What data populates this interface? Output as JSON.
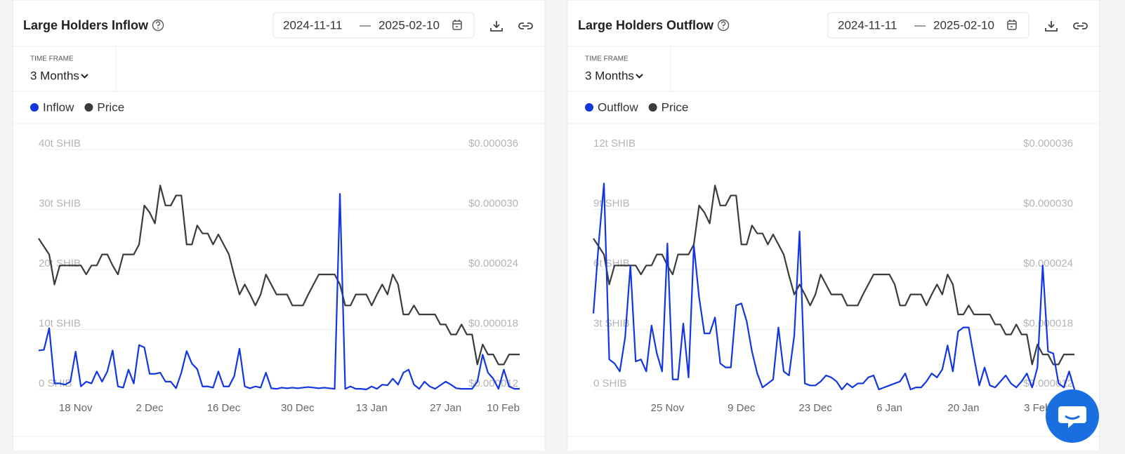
{
  "panels": [
    {
      "date_start": "2024-11-11",
      "date_separator": "—",
      "date_end": "2025-02-10",
      "time_frame_label": "TIME FRAME",
      "time_frame": "3 Months"
    },
    {
      "date_start": "2024-11-11",
      "date_separator": "—",
      "date_end": "2025-02-10",
      "time_frame_label": "TIME FRAME",
      "time_frame": "3 Months"
    }
  ],
  "chart_data": [
    {
      "type": "line",
      "title": "Large Holders Inflow",
      "categories": [
        null,
        null,
        null,
        null,
        null,
        null,
        null,
        "18 Nov",
        null,
        null,
        null,
        null,
        null,
        null,
        null,
        null,
        null,
        null,
        null,
        null,
        null,
        "2 Dec",
        null,
        null,
        null,
        null,
        null,
        null,
        null,
        null,
        null,
        null,
        null,
        null,
        null,
        "16 Dec",
        null,
        null,
        null,
        null,
        null,
        null,
        null,
        null,
        null,
        null,
        null,
        null,
        null,
        "30 Dec",
        null,
        null,
        null,
        null,
        null,
        null,
        null,
        null,
        null,
        null,
        null,
        null,
        null,
        "13 Jan",
        null,
        null,
        null,
        null,
        null,
        null,
        null,
        null,
        null,
        null,
        null,
        null,
        null,
        "27 Jan",
        null,
        null,
        null,
        null,
        null,
        null,
        null,
        null,
        null,
        null,
        null,
        null,
        null,
        "10 Feb"
      ],
      "series": [
        {
          "name": "Inflow",
          "color": "#1236e0",
          "values": [
            6.5,
            6.6,
            10.2,
            1.0,
            1.0,
            0.8,
            1.3,
            6.3,
            0.5,
            1.3,
            1.0,
            3.0,
            1.3,
            3.0,
            6.5,
            0.5,
            0.3,
            3.3,
            1.0,
            7.4,
            7.0,
            2.6,
            2.6,
            2.8,
            1.3,
            1.3,
            0.2,
            2.8,
            6.4,
            4.3,
            3.4,
            0.5,
            0.5,
            0.3,
            3.0,
            0.5,
            0.5,
            2.2,
            6.8,
            0.5,
            0.2,
            0.5,
            0.3,
            2.8,
            0.2,
            0.1,
            0.3,
            0.2,
            0.3,
            0.2,
            0.3,
            0.4,
            0.3,
            0.2,
            0.3,
            0.2,
            0.1,
            32.6,
            0.1,
            0.5,
            0.1,
            0.1,
            0.0,
            0.5,
            0.1,
            0.8,
            0.7,
            1.8,
            0.8,
            2.8,
            3.3,
            0.8,
            0.1,
            1.3,
            0.5,
            0.1,
            0.7,
            1.3,
            0.8,
            0.2,
            0.1,
            0.1,
            0.1,
            1.3,
            5.8,
            2.8,
            1.8,
            0.1,
            3.3,
            0.5,
            0.1,
            0.1
          ]
        },
        {
          "name": "Price",
          "color": "#3b3b3b",
          "axis": "y2",
          "values": [
            2.71e-05,
            2.63e-05,
            2.55e-05,
            2.25e-05,
            2.44e-05,
            2.44e-05,
            2.44e-05,
            2.44e-05,
            2.44e-05,
            2.35e-05,
            2.44e-05,
            2.44e-05,
            2.55e-05,
            2.55e-05,
            2.44e-05,
            2.35e-05,
            2.55e-05,
            2.55e-05,
            2.55e-05,
            2.65e-05,
            3.04e-05,
            2.97e-05,
            2.86e-05,
            3.24e-05,
            3.04e-05,
            3.04e-05,
            3.14e-05,
            3.14e-05,
            2.65e-05,
            2.65e-05,
            2.84e-05,
            2.76e-05,
            2.76e-05,
            2.65e-05,
            2.75e-05,
            2.65e-05,
            2.55e-05,
            2.34e-05,
            2.15e-05,
            2.25e-05,
            2.15e-05,
            2.04e-05,
            2.15e-05,
            2.35e-05,
            2.25e-05,
            2.15e-05,
            2.15e-05,
            2.15e-05,
            2.04e-05,
            2.04e-05,
            2.04e-05,
            2.15e-05,
            2.25e-05,
            2.35e-05,
            2.35e-05,
            2.35e-05,
            2.35e-05,
            2.25e-05,
            2.04e-05,
            2.04e-05,
            2.15e-05,
            2.15e-05,
            2.15e-05,
            2.04e-05,
            2.15e-05,
            2.25e-05,
            2.15e-05,
            2.35e-05,
            2.25e-05,
            1.95e-05,
            1.95e-05,
            2.04e-05,
            1.95e-05,
            1.95e-05,
            1.95e-05,
            1.95e-05,
            1.85e-05,
            1.85e-05,
            1.75e-05,
            1.75e-05,
            1.85e-05,
            1.75e-05,
            1.75e-05,
            1.45e-05,
            1.65e-05,
            1.55e-05,
            1.55e-05,
            1.45e-05,
            1.45e-05,
            1.55e-05,
            1.55e-05,
            1.55e-05
          ]
        }
      ],
      "ylim": [
        0,
        40
      ],
      "yticks": [
        {
          "value": 0,
          "label": "0 SHIB"
        },
        {
          "value": 10,
          "label": "10t SHIB"
        },
        {
          "value": 20,
          "label": "20t SHIB"
        },
        {
          "value": 30,
          "label": "30t SHIB"
        },
        {
          "value": 40,
          "label": "40t SHIB"
        }
      ],
      "y2lim": [
        1.2e-05,
        3.6e-05
      ],
      "y2ticks": [
        {
          "value": 1.2e-05,
          "label": "$0.000012"
        },
        {
          "value": 1.8e-05,
          "label": "$0.000018"
        },
        {
          "value": 2.4e-05,
          "label": "$0.000024"
        },
        {
          "value": 3e-05,
          "label": "$0.000030"
        },
        {
          "value": 3.6e-05,
          "label": "$0.000036"
        }
      ],
      "grid": true
    },
    {
      "type": "line",
      "title": "Large Holders Outflow",
      "categories": [
        null,
        null,
        null,
        null,
        null,
        null,
        null,
        null,
        null,
        null,
        null,
        null,
        null,
        null,
        "25 Nov",
        null,
        null,
        null,
        null,
        null,
        null,
        null,
        null,
        null,
        null,
        null,
        null,
        null,
        "9 Dec",
        null,
        null,
        null,
        null,
        null,
        null,
        null,
        null,
        null,
        null,
        null,
        null,
        null,
        "23 Dec",
        null,
        null,
        null,
        null,
        null,
        null,
        null,
        null,
        null,
        null,
        null,
        null,
        null,
        "6 Jan",
        null,
        null,
        null,
        null,
        null,
        null,
        null,
        null,
        null,
        null,
        null,
        null,
        null,
        "20 Jan",
        null,
        null,
        null,
        null,
        null,
        null,
        null,
        null,
        null,
        null,
        null,
        null,
        null,
        "3 Feb",
        null,
        null,
        null,
        null,
        null,
        null,
        null
      ],
      "series": [
        {
          "name": "Outflow",
          "color": "#1236e0",
          "values": [
            3.8,
            7.3,
            10.3,
            1.5,
            1.3,
            0.9,
            2.6,
            6.2,
            1.4,
            1.5,
            0.9,
            3.2,
            1.8,
            0.9,
            7.3,
            0.5,
            0.5,
            3.3,
            0.6,
            7.2,
            4.6,
            2.8,
            2.8,
            3.6,
            1.3,
            1.1,
            1.1,
            4.2,
            4.3,
            3.4,
            1.9,
            0.8,
            0.1,
            0.3,
            0.5,
            3.1,
            0.9,
            0.7,
            2.7,
            7.9,
            0.3,
            0.2,
            0.2,
            0.4,
            0.7,
            0.6,
            0.4,
            0.0,
            0.3,
            0.1,
            0.3,
            0.3,
            0.6,
            0.7,
            0.0,
            0.1,
            0.2,
            0.3,
            0.4,
            0.8,
            0.0,
            0.1,
            0.1,
            0.4,
            0.8,
            0.6,
            1.0,
            2.2,
            0.9,
            2.9,
            3.1,
            3.1,
            1.6,
            0.2,
            1.1,
            0.2,
            0.1,
            0.4,
            0.7,
            0.3,
            0.1,
            0.4,
            0.8,
            0.1,
            1.1,
            6.2,
            1.9,
            1.8,
            0.3,
            0.1,
            0.9,
            0.0
          ]
        },
        {
          "name": "Price",
          "color": "#3b3b3b",
          "axis": "y2",
          "values": [
            2.71e-05,
            2.63e-05,
            2.55e-05,
            2.25e-05,
            2.44e-05,
            2.44e-05,
            2.44e-05,
            2.44e-05,
            2.44e-05,
            2.35e-05,
            2.44e-05,
            2.44e-05,
            2.55e-05,
            2.55e-05,
            2.44e-05,
            2.35e-05,
            2.55e-05,
            2.55e-05,
            2.55e-05,
            2.65e-05,
            3.04e-05,
            2.97e-05,
            2.86e-05,
            3.24e-05,
            3.04e-05,
            3.04e-05,
            3.14e-05,
            3.14e-05,
            2.65e-05,
            2.65e-05,
            2.84e-05,
            2.76e-05,
            2.76e-05,
            2.65e-05,
            2.75e-05,
            2.65e-05,
            2.55e-05,
            2.34e-05,
            2.15e-05,
            2.25e-05,
            2.15e-05,
            2.04e-05,
            2.15e-05,
            2.35e-05,
            2.25e-05,
            2.15e-05,
            2.15e-05,
            2.15e-05,
            2.04e-05,
            2.04e-05,
            2.04e-05,
            2.15e-05,
            2.25e-05,
            2.35e-05,
            2.35e-05,
            2.35e-05,
            2.35e-05,
            2.25e-05,
            2.04e-05,
            2.04e-05,
            2.15e-05,
            2.15e-05,
            2.15e-05,
            2.04e-05,
            2.15e-05,
            2.25e-05,
            2.15e-05,
            2.35e-05,
            2.25e-05,
            1.95e-05,
            1.95e-05,
            2.04e-05,
            1.95e-05,
            1.95e-05,
            1.95e-05,
            1.95e-05,
            1.85e-05,
            1.85e-05,
            1.75e-05,
            1.75e-05,
            1.85e-05,
            1.75e-05,
            1.75e-05,
            1.45e-05,
            1.65e-05,
            1.55e-05,
            1.55e-05,
            1.45e-05,
            1.45e-05,
            1.55e-05,
            1.55e-05,
            1.55e-05
          ]
        }
      ],
      "ylim": [
        0,
        12
      ],
      "yticks": [
        {
          "value": 0,
          "label": "0 SHIB"
        },
        {
          "value": 3,
          "label": "3t SHIB"
        },
        {
          "value": 6,
          "label": "6t SHIB"
        },
        {
          "value": 9,
          "label": "9t SHIB"
        },
        {
          "value": 12,
          "label": "12t SHIB"
        }
      ],
      "y2lim": [
        1.2e-05,
        3.6e-05
      ],
      "y2ticks": [
        {
          "value": 1.2e-05,
          "label": "$0.000012"
        },
        {
          "value": 1.8e-05,
          "label": "$0.000018"
        },
        {
          "value": 2.4e-05,
          "label": "$0.000024"
        },
        {
          "value": 3e-05,
          "label": "$0.000030"
        },
        {
          "value": 3.6e-05,
          "label": "$0.000036"
        }
      ],
      "grid": true
    }
  ]
}
